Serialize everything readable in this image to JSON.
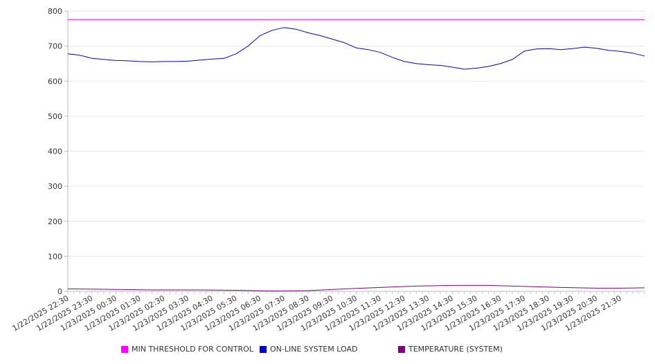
{
  "chart_data": {
    "type": "line",
    "title": "",
    "xlabel": "",
    "ylabel": "",
    "ylim": [
      0,
      800
    ],
    "yticks": [
      0,
      100,
      200,
      300,
      400,
      500,
      600,
      700,
      800
    ],
    "grid": true,
    "legend_position": "bottom",
    "categories": [
      "1/22/2025 22:30",
      "1/22/2025 23:30",
      "1/23/2025 00:30",
      "1/23/2025 01:30",
      "1/23/2025 02:30",
      "1/23/2025 03:30",
      "1/23/2025 04:30",
      "1/23/2025 05:30",
      "1/23/2025 06:30",
      "1/23/2025 07:30",
      "1/23/2025 08:30",
      "1/23/2025 09:30",
      "1/23/2025 10:30",
      "1/23/2025 11:30",
      "1/23/2025 12:30",
      "1/23/2025 13:30",
      "1/23/2025 14:30",
      "1/23/2025 15:30",
      "1/23/2025 16:30",
      "1/23/2025 17:30",
      "1/23/2025 18:30",
      "1/23/2025 19:30",
      "1/23/2025 20:30",
      "1/23/2025 21:30"
    ],
    "series": [
      {
        "name": "MIN THRESHOLD FOR CONTROL",
        "color": "#ff00ff",
        "x": [
          "1/22/2025 22:30",
          "1/23/2025 22:30"
        ],
        "values": [
          776,
          776
        ]
      },
      {
        "name": "ON-LINE SYSTEM LOAD",
        "color": "#0000cc",
        "x": [
          "1/22/2025 22:30",
          "1/22/2025 23:00",
          "1/22/2025 23:30",
          "1/23/2025 00:00",
          "1/23/2025 00:30",
          "1/23/2025 01:00",
          "1/23/2025 01:30",
          "1/23/2025 02:00",
          "1/23/2025 02:30",
          "1/23/2025 03:00",
          "1/23/2025 03:30",
          "1/23/2025 04:00",
          "1/23/2025 04:30",
          "1/23/2025 05:00",
          "1/23/2025 05:30",
          "1/23/2025 06:00",
          "1/23/2025 06:30",
          "1/23/2025 07:00",
          "1/23/2025 07:30",
          "1/23/2025 08:00",
          "1/23/2025 08:30",
          "1/23/2025 09:00",
          "1/23/2025 09:30",
          "1/23/2025 10:00",
          "1/23/2025 10:30",
          "1/23/2025 11:00",
          "1/23/2025 11:30",
          "1/23/2025 12:00",
          "1/23/2025 12:30",
          "1/23/2025 13:00",
          "1/23/2025 13:30",
          "1/23/2025 14:00",
          "1/23/2025 14:30",
          "1/23/2025 15:00",
          "1/23/2025 15:30",
          "1/23/2025 16:00",
          "1/23/2025 16:30",
          "1/23/2025 17:00",
          "1/23/2025 17:30",
          "1/23/2025 18:00",
          "1/23/2025 18:30",
          "1/23/2025 19:00",
          "1/23/2025 19:30",
          "1/23/2025 20:00",
          "1/23/2025 20:30",
          "1/23/2025 21:00",
          "1/23/2025 21:30",
          "1/23/2025 22:00",
          "1/23/2025 22:30"
        ],
        "values": [
          678,
          674,
          665,
          662,
          659,
          658,
          656,
          655,
          656,
          656,
          657,
          660,
          663,
          665,
          678,
          700,
          730,
          745,
          753,
          748,
          738,
          730,
          720,
          710,
          695,
          690,
          682,
          668,
          656,
          650,
          647,
          645,
          640,
          634,
          637,
          642,
          650,
          662,
          686,
          692,
          693,
          690,
          693,
          697,
          694,
          688,
          685,
          680,
          672
        ]
      },
      {
        "name": "TEMPERATURE (SYSTEM)",
        "color": "#800080",
        "x": [
          "1/22/2025 22:30",
          "1/23/2025 00:00",
          "1/23/2025 02:00",
          "1/23/2025 04:00",
          "1/23/2025 05:30",
          "1/23/2025 07:00",
          "1/23/2025 08:30",
          "1/23/2025 10:00",
          "1/23/2025 11:30",
          "1/23/2025 13:00",
          "1/23/2025 14:30",
          "1/23/2025 16:00",
          "1/23/2025 17:30",
          "1/23/2025 19:00",
          "1/23/2025 20:30",
          "1/23/2025 21:30",
          "1/23/2025 22:30"
        ],
        "values": [
          7,
          6,
          4,
          4,
          3,
          1,
          2,
          7,
          11,
          15,
          17,
          17,
          14,
          11,
          9,
          9,
          10
        ]
      }
    ]
  }
}
